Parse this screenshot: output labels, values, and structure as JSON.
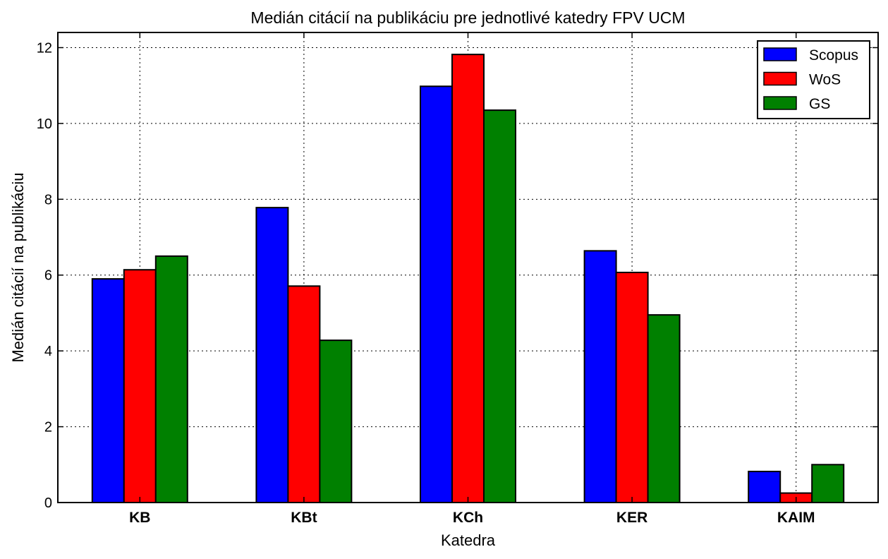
{
  "chart_data": {
    "type": "bar",
    "title": "Medián citácií na publikáciu pre jednotlivé katedry FPV UCM",
    "xlabel": "Katedra",
    "ylabel": "Medián citácií na publikáciu",
    "categories": [
      "KB",
      "KBt",
      "KCh",
      "KER",
      "KAIM"
    ],
    "series": [
      {
        "name": "Scopus",
        "color": "#0000ff",
        "values": [
          5.9,
          7.78,
          10.98,
          6.64,
          0.82
        ]
      },
      {
        "name": "WoS",
        "color": "#ff0000",
        "values": [
          6.14,
          5.71,
          11.82,
          6.07,
          0.25
        ]
      },
      {
        "name": "GS",
        "color": "#008000",
        "values": [
          6.5,
          4.28,
          10.35,
          4.95,
          1.0
        ]
      }
    ],
    "ylim": [
      0,
      12.4
    ],
    "yticks": [
      "0",
      "2",
      "4",
      "6",
      "8",
      "10",
      "12"
    ],
    "grid": true,
    "legend_position": "top-right"
  }
}
